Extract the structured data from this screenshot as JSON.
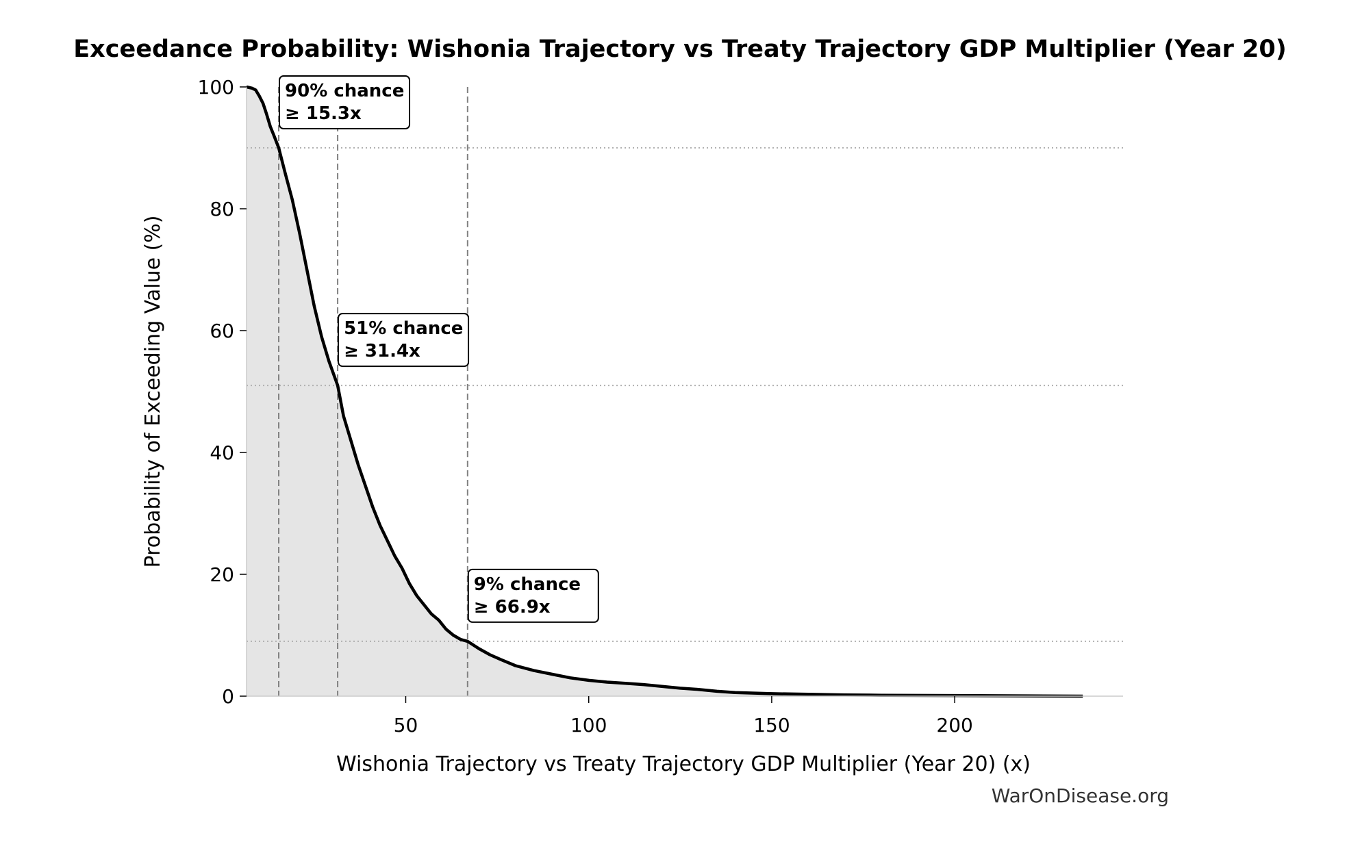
{
  "chart_data": {
    "type": "area",
    "title": "Exceedance Probability: Wishonia Trajectory vs Treaty Trajectory GDP Multiplier (Year 20)",
    "xlabel": "Wishonia Trajectory vs Treaty Trajectory GDP Multiplier (Year 20) (x)",
    "ylabel": "Probability of Exceeding Value (%)",
    "xlim": [
      6.5,
      246
    ],
    "ylim": [
      0,
      100
    ],
    "xticks": [
      50,
      100,
      150,
      200
    ],
    "yticks": [
      0,
      20,
      40,
      60,
      80,
      100
    ],
    "grid": false,
    "series": [
      {
        "x": [
          6.5,
          8,
          9,
          10,
          11,
          12,
          13,
          14,
          15.3,
          17,
          19,
          21,
          23,
          25,
          27,
          29,
          31.4,
          33,
          35,
          37,
          39,
          41,
          43,
          45,
          47,
          49,
          51,
          53,
          55,
          57,
          59,
          61,
          63,
          65,
          66.9,
          70,
          73,
          76,
          80,
          85,
          90,
          95,
          100,
          105,
          110,
          115,
          120,
          125,
          130,
          135,
          140,
          150,
          160,
          170,
          180,
          200,
          220,
          235
        ],
        "y": [
          100,
          99.8,
          99.5,
          98.5,
          97.3,
          95.5,
          93.5,
          92,
          90,
          86,
          81.5,
          76,
          70,
          64,
          59,
          55,
          51,
          46,
          42,
          38,
          34.5,
          31,
          28,
          25.5,
          23,
          21,
          18.5,
          16.5,
          15,
          13.5,
          12.5,
          11,
          10,
          9.3,
          9,
          7.8,
          6.8,
          6,
          5,
          4.2,
          3.6,
          3,
          2.6,
          2.3,
          2.1,
          1.9,
          1.6,
          1.3,
          1.1,
          0.8,
          0.6,
          0.4,
          0.3,
          0.2,
          0.15,
          0.1,
          0.05,
          0
        ]
      }
    ],
    "thresholds": [
      {
        "x": 15.3,
        "p": 90,
        "label_line1": "90% chance",
        "label_line2": "≥ 15.3x"
      },
      {
        "x": 31.4,
        "p": 51,
        "label_line1": "51% chance",
        "label_line2": "≥ 31.4x"
      },
      {
        "x": 66.9,
        "p": 9,
        "label_line1": "9% chance",
        "label_line2": "≥ 66.9x"
      }
    ],
    "colors": {
      "curve": "#000000",
      "fill": "#e5e5e5",
      "guide": "#808080",
      "hline": "#b0b0b0"
    }
  },
  "watermark": "WarOnDisease.org"
}
